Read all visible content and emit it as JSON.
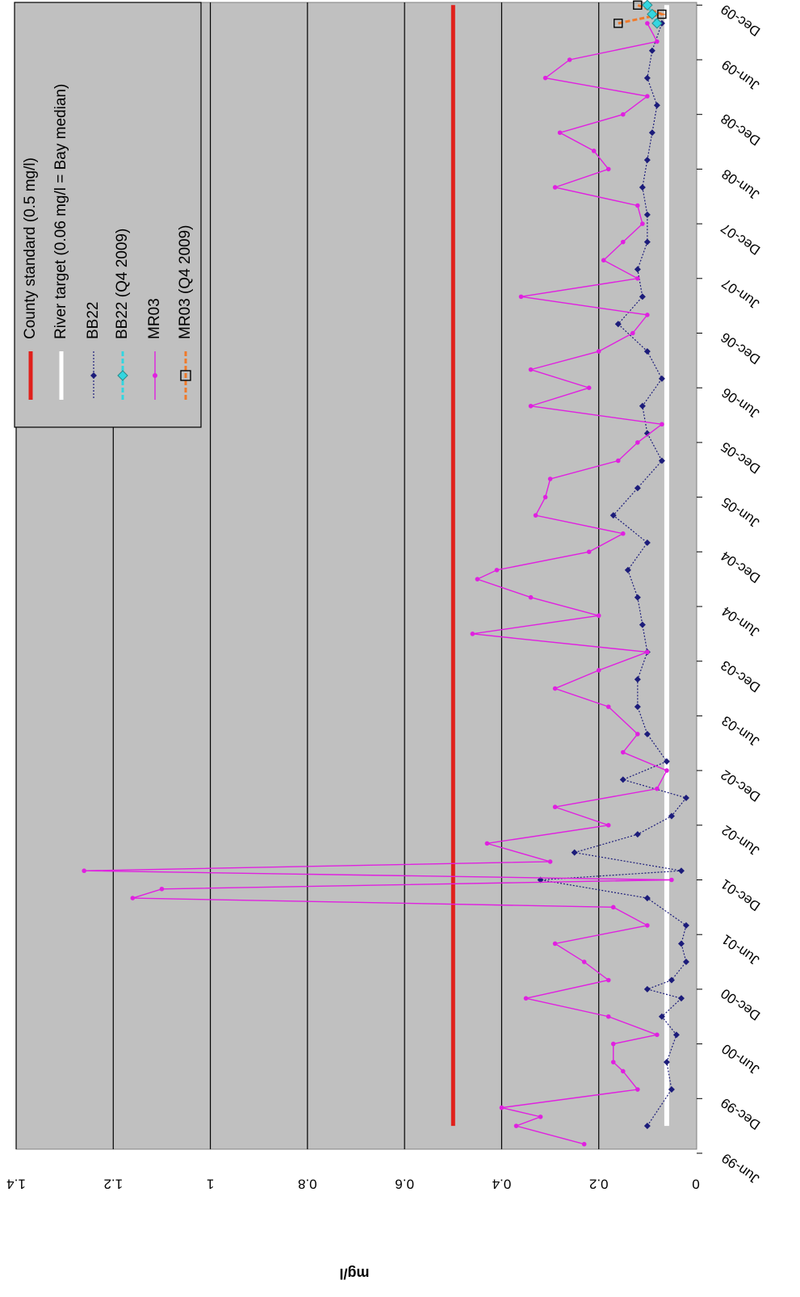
{
  "chart_data": {
    "type": "line",
    "orientation": "rotated 90° clockwise",
    "title": "",
    "xlabel": "",
    "ylabel": "mg/l",
    "ylim": [
      0,
      1.4
    ],
    "yticks": [
      "0",
      "0.2",
      "0.4",
      "0.6",
      "0.8",
      "1",
      "1.2",
      "1.4"
    ],
    "xlim": [
      "1999-06",
      "2009-12"
    ],
    "xticks": [
      "Jun-99",
      "Dec-99",
      "Jun-00",
      "Dec-00",
      "Jun-01",
      "Dec-01",
      "Jun-02",
      "Dec-02",
      "Jun-03",
      "Dec-03",
      "Jun-04",
      "Dec-04",
      "Jun-05",
      "Dec-05",
      "Jun-06",
      "Dec-06",
      "Jun-07",
      "Dec-07",
      "Jun-08",
      "Dec-08",
      "Jun-09",
      "Dec-09"
    ],
    "grid": true,
    "legend_position": "top-right",
    "colors": {
      "plot_bg": "#c0c0c0",
      "county": "#e0201b",
      "river": "#ffffff",
      "bb22": "#1c1c7a",
      "bb22q4": "#33d6e0",
      "mr03": "#e020e0",
      "mr03q4": "#f07a2a"
    },
    "series": [
      {
        "name": "County standard (0.5 mg/l)",
        "style": "thick-line",
        "x": [
          "1999-09",
          "2009-12"
        ],
        "y": [
          0.5,
          0.5
        ]
      },
      {
        "name": "River target (0.06 mg/l = Bay median)",
        "style": "thick-line",
        "x": [
          "1999-09",
          "2009-12"
        ],
        "y": [
          0.06,
          0.06
        ]
      },
      {
        "name": "BB22",
        "style": "dotted-diamond",
        "x": [
          "1999-09",
          "2000-01",
          "2000-04",
          "2000-07",
          "2000-09",
          "2000-11",
          "2000-12",
          "2001-01",
          "2001-03",
          "2001-05",
          "2001-07",
          "2001-10",
          "2001-12",
          "2002-01",
          "2002-03",
          "2002-05",
          "2002-07",
          "2002-09",
          "2002-11",
          "2003-01",
          "2003-04",
          "2003-07",
          "2003-10",
          "2004-01",
          "2004-04",
          "2004-07",
          "2004-10",
          "2005-01",
          "2005-04",
          "2005-07",
          "2005-10",
          "2006-01",
          "2006-04",
          "2006-07",
          "2006-10",
          "2007-01",
          "2007-04",
          "2007-07",
          "2007-10",
          "2008-01",
          "2008-04",
          "2008-07",
          "2008-10",
          "2009-01",
          "2009-04",
          "2009-07",
          "2009-10"
        ],
        "y": [
          0.1,
          0.05,
          0.06,
          0.04,
          0.07,
          0.03,
          0.1,
          0.05,
          0.02,
          0.03,
          0.02,
          0.1,
          0.32,
          0.03,
          0.25,
          0.12,
          0.05,
          0.02,
          0.15,
          0.06,
          0.1,
          0.12,
          0.12,
          0.1,
          0.11,
          0.12,
          0.14,
          0.1,
          0.17,
          0.12,
          0.07,
          0.1,
          0.11,
          0.07,
          0.1,
          0.16,
          0.11,
          0.12,
          0.1,
          0.1,
          0.11,
          0.1,
          0.09,
          0.08,
          0.1,
          0.09,
          0.07
        ]
      },
      {
        "name": "BB22 (Q4 2009)",
        "style": "dashed-open-diamond",
        "x": [
          "2009-10",
          "2009-11",
          "2009-12"
        ],
        "y": [
          0.08,
          0.09,
          0.1
        ]
      },
      {
        "name": "MR03",
        "style": "solid-dot",
        "x": [
          "1999-07",
          "1999-09",
          "1999-10",
          "1999-11",
          "2000-01",
          "2000-03",
          "2000-04",
          "2000-06",
          "2000-07",
          "2000-09",
          "2000-11",
          "2001-01",
          "2001-03",
          "2001-05",
          "2001-07",
          "2001-09",
          "2001-10",
          "2001-11",
          "2001-12",
          "2002-01",
          "2002-02",
          "2002-04",
          "2002-06",
          "2002-08",
          "2002-10",
          "2002-12",
          "2003-02",
          "2003-04",
          "2003-07",
          "2003-09",
          "2003-11",
          "2004-01",
          "2004-03",
          "2004-05",
          "2004-07",
          "2004-09",
          "2004-10",
          "2004-12",
          "2005-02",
          "2005-04",
          "2005-06",
          "2005-08",
          "2005-10",
          "2005-12",
          "2006-02",
          "2006-04",
          "2006-06",
          "2006-08",
          "2006-10",
          "2006-12",
          "2007-02",
          "2007-04",
          "2007-06",
          "2007-08",
          "2007-10",
          "2007-12",
          "2008-02",
          "2008-04",
          "2008-06",
          "2008-08",
          "2008-10",
          "2008-12",
          "2009-02",
          "2009-04",
          "2009-06",
          "2009-08",
          "2009-10"
        ],
        "y": [
          0.23,
          0.37,
          0.32,
          0.4,
          0.12,
          0.15,
          0.17,
          0.17,
          0.08,
          0.18,
          0.35,
          0.18,
          0.23,
          0.29,
          0.1,
          0.17,
          1.16,
          1.1,
          0.05,
          1.26,
          0.3,
          0.43,
          0.18,
          0.29,
          0.08,
          0.06,
          0.15,
          0.12,
          0.18,
          0.29,
          0.2,
          0.1,
          0.46,
          0.2,
          0.34,
          0.45,
          0.41,
          0.22,
          0.15,
          0.33,
          0.31,
          0.3,
          0.16,
          0.12,
          0.07,
          0.34,
          0.22,
          0.34,
          0.2,
          0.13,
          0.1,
          0.36,
          0.12,
          0.19,
          0.15,
          0.11,
          0.12,
          0.29,
          0.18,
          0.21,
          0.28,
          0.15,
          0.1,
          0.31,
          0.26,
          0.08,
          0.1
        ]
      },
      {
        "name": "MR03 (Q4 2009)",
        "style": "dashed-open-square",
        "x": [
          "2009-10",
          "2009-11",
          "2009-12"
        ],
        "y": [
          0.16,
          0.07,
          0.12
        ]
      }
    ]
  }
}
